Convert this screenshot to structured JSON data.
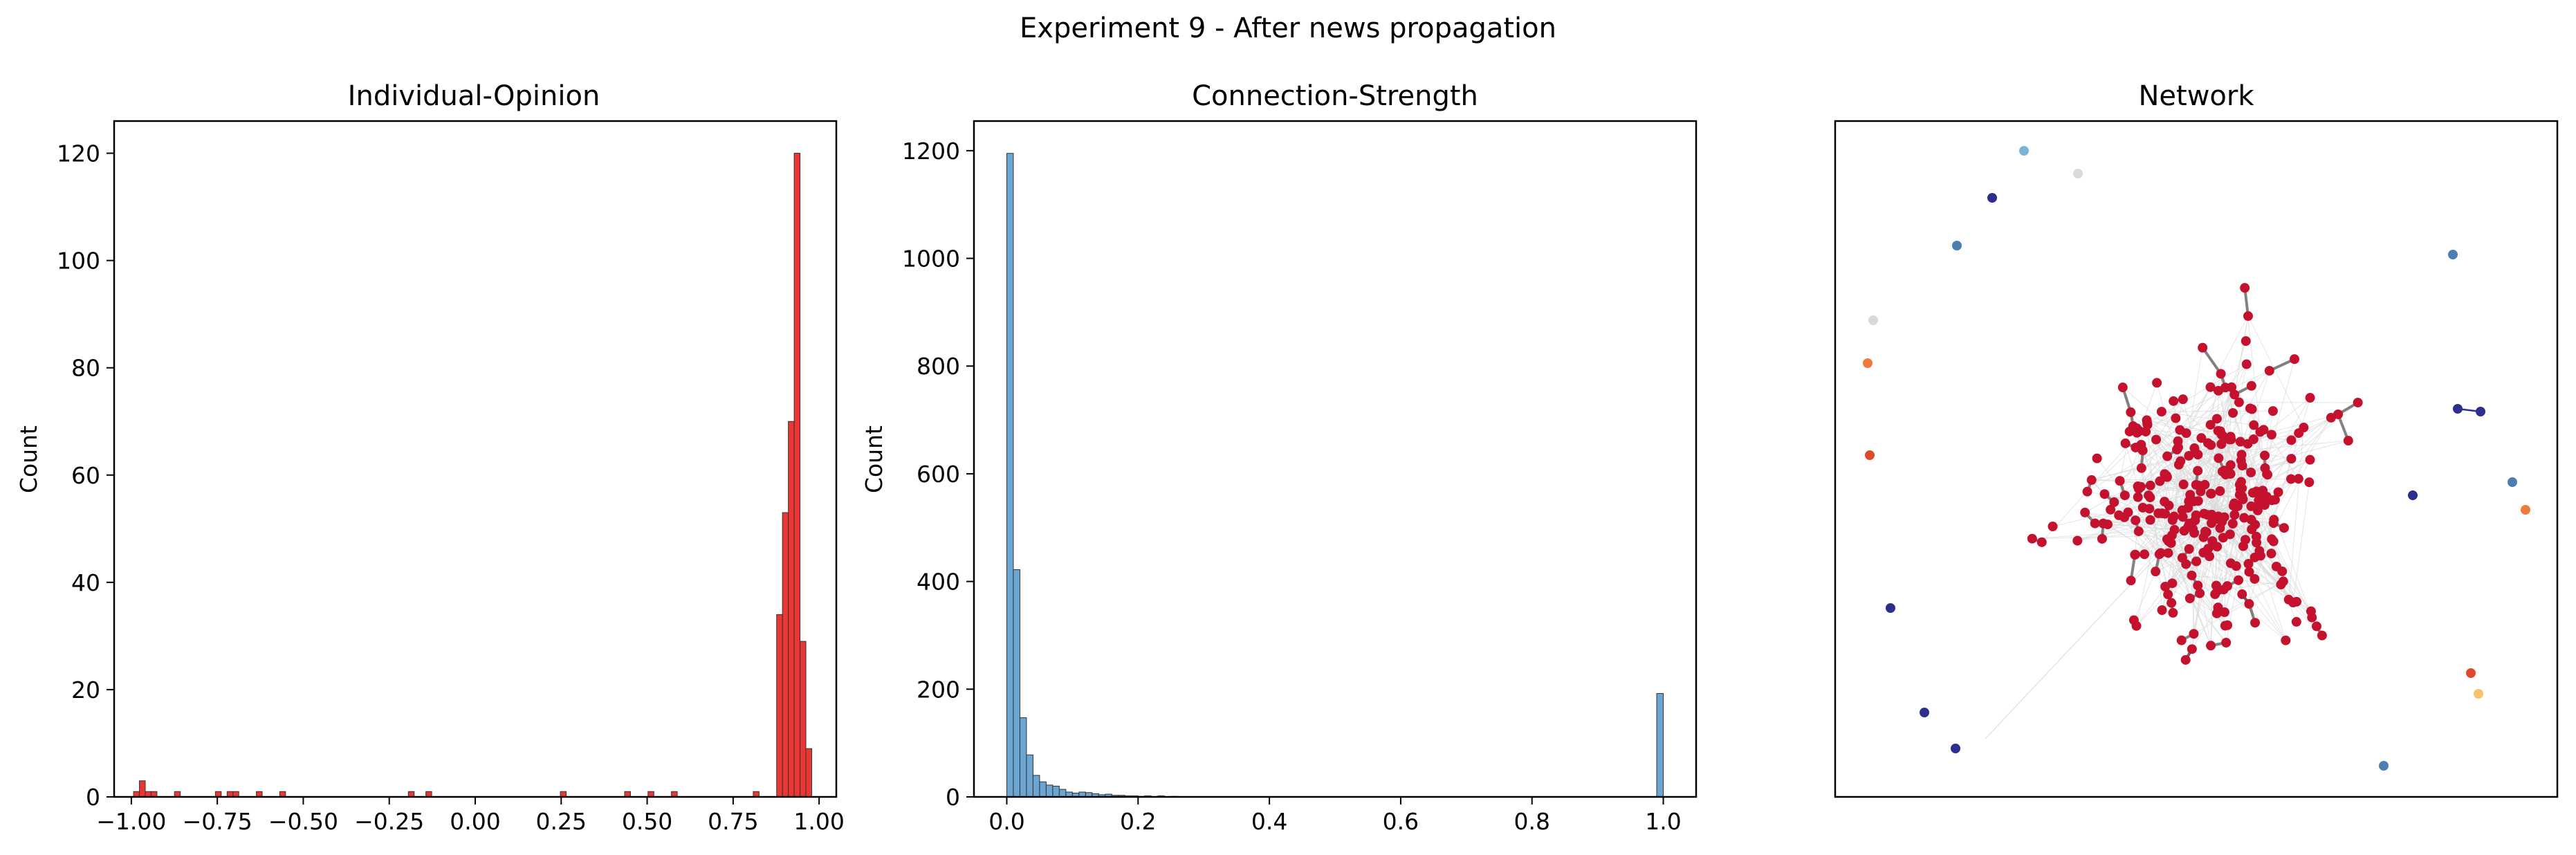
{
  "figure": {
    "suptitle": "Experiment 9 - After news propagation"
  },
  "chart_data": [
    {
      "type": "bar",
      "title": "Individual-Opinion",
      "xlabel": "",
      "ylabel": "Count",
      "xlim": [
        -1.05,
        1.05
      ],
      "ylim": [
        0,
        126
      ],
      "xticks": [
        -1.0,
        -0.75,
        -0.5,
        -0.25,
        0.0,
        0.25,
        0.5,
        0.75,
        1.0
      ],
      "xtick_labels": [
        "−1.00",
        "−0.75",
        "−0.50",
        "−0.25",
        "0.00",
        "0.25",
        "0.50",
        "0.75",
        "1.00"
      ],
      "yticks": [
        0,
        20,
        40,
        60,
        80,
        100,
        120
      ],
      "ytick_labels": [
        "0",
        "20",
        "40",
        "60",
        "80",
        "100",
        "120"
      ],
      "color": "#e8201f",
      "bins": [
        {
          "x": -0.985,
          "count": 1
        },
        {
          "x": -0.968,
          "count": 3
        },
        {
          "x": -0.951,
          "count": 1
        },
        {
          "x": -0.934,
          "count": 1
        },
        {
          "x": -0.866,
          "count": 1
        },
        {
          "x": -0.747,
          "count": 1
        },
        {
          "x": -0.713,
          "count": 1
        },
        {
          "x": -0.696,
          "count": 1
        },
        {
          "x": -0.628,
          "count": 1
        },
        {
          "x": -0.56,
          "count": 1
        },
        {
          "x": -0.186,
          "count": 1
        },
        {
          "x": -0.135,
          "count": 1
        },
        {
          "x": 0.256,
          "count": 1
        },
        {
          "x": 0.443,
          "count": 1
        },
        {
          "x": 0.511,
          "count": 1
        },
        {
          "x": 0.579,
          "count": 1
        },
        {
          "x": 0.817,
          "count": 1
        },
        {
          "x": 0.885,
          "count": 34
        },
        {
          "x": 0.902,
          "count": 53
        },
        {
          "x": 0.919,
          "count": 70
        },
        {
          "x": 0.936,
          "count": 120
        },
        {
          "x": 0.953,
          "count": 29
        },
        {
          "x": 0.97,
          "count": 9
        }
      ],
      "bin_width": 0.017
    },
    {
      "type": "bar",
      "title": "Connection-Strength",
      "xlabel": "",
      "ylabel": "Count",
      "xlim": [
        -0.05,
        1.05
      ],
      "ylim": [
        0,
        1255
      ],
      "xticks": [
        0.0,
        0.2,
        0.4,
        0.6,
        0.8,
        1.0
      ],
      "xtick_labels": [
        "0.0",
        "0.2",
        "0.4",
        "0.6",
        "0.8",
        "1.0"
      ],
      "yticks": [
        0,
        200,
        400,
        600,
        800,
        1000,
        1200
      ],
      "ytick_labels": [
        "0",
        "200",
        "400",
        "600",
        "800",
        "1000",
        "1200"
      ],
      "color": "#5a9ccc",
      "bins": [
        {
          "x": 0.005,
          "count": 1195
        },
        {
          "x": 0.015,
          "count": 422
        },
        {
          "x": 0.025,
          "count": 147
        },
        {
          "x": 0.035,
          "count": 78
        },
        {
          "x": 0.045,
          "count": 40
        },
        {
          "x": 0.055,
          "count": 28
        },
        {
          "x": 0.065,
          "count": 22
        },
        {
          "x": 0.075,
          "count": 20
        },
        {
          "x": 0.085,
          "count": 14
        },
        {
          "x": 0.095,
          "count": 9
        },
        {
          "x": 0.105,
          "count": 7
        },
        {
          "x": 0.115,
          "count": 9
        },
        {
          "x": 0.125,
          "count": 8
        },
        {
          "x": 0.135,
          "count": 6
        },
        {
          "x": 0.145,
          "count": 4
        },
        {
          "x": 0.155,
          "count": 5
        },
        {
          "x": 0.165,
          "count": 3
        },
        {
          "x": 0.175,
          "count": 3
        },
        {
          "x": 0.185,
          "count": 2
        },
        {
          "x": 0.195,
          "count": 2
        },
        {
          "x": 0.205,
          "count": 1
        },
        {
          "x": 0.215,
          "count": 2
        },
        {
          "x": 0.235,
          "count": 2
        },
        {
          "x": 0.255,
          "count": 1
        },
        {
          "x": 0.995,
          "count": 192
        }
      ],
      "bin_width": 0.01
    }
  ],
  "network": {
    "title": "Network",
    "colors": {
      "core_node": "#c4122e",
      "edge_dark": "#5a5a5a",
      "edge_light": "#d9d9d9",
      "deep_blue": "#2d2f8c",
      "steel_blue": "#4a7fb0",
      "light_blue": "#7eb3d8",
      "orange": "#f07a3c",
      "light_orange": "#f6c26b",
      "red_orange": "#e04a2c"
    }
  }
}
